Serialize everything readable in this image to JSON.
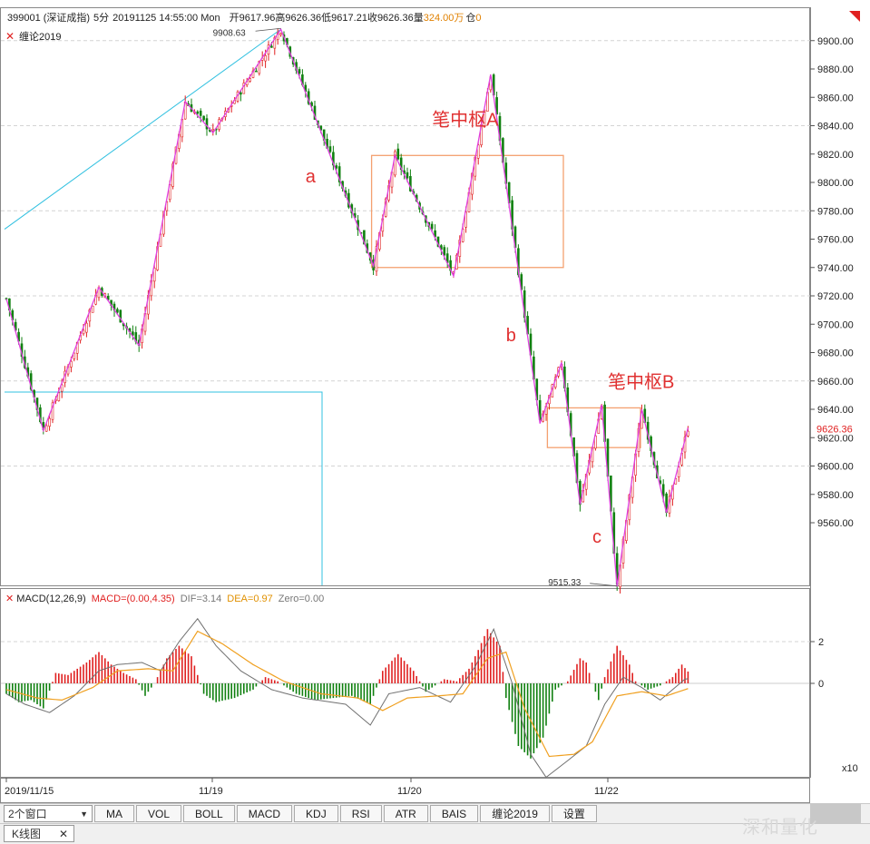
{
  "header": {
    "code": "399001",
    "name": "(深证成指)",
    "period": "5分",
    "datetime": "20191125 14:55:00 Mon",
    "open_label": "开",
    "open": "9617.96",
    "high_label": "高",
    "high": "9626.36",
    "low_label": "低",
    "low": "9617.21",
    "close_label": "收",
    "close": "9626.36",
    "vol_label": "量",
    "vol": "324.00万",
    "pos_label": "仓",
    "pos": "0"
  },
  "indicator_label": "缠论2019",
  "macd_header": {
    "name": "MACD(12,26,9)",
    "macd": "MACD=(0.00,4.35)",
    "dif": "DIF=3.14",
    "dea": "DEA=0.97",
    "zero": "Zero=0.00"
  },
  "x_axis_labels": [
    "2019/11/15",
    "11/19",
    "11/20",
    "11/22"
  ],
  "macd_multiplier": "x10",
  "toolbar": {
    "window_select": "2个窗口",
    "buttons": [
      "MA",
      "VOL",
      "BOLL",
      "MACD",
      "KDJ",
      "RSI",
      "ATR",
      "BAIS",
      "缠论2019",
      "设置"
    ]
  },
  "tab": {
    "label": "K线图",
    "close": "✕"
  },
  "watermark": "深和量化",
  "colors": {
    "up": "#e02020",
    "down": "#108010",
    "bi": "#e040e0",
    "zhongshu": "#f4a070",
    "trend": "#30c0e0",
    "dif": "#707070",
    "dea": "#f0a020",
    "annot": "#e03030"
  },
  "chart_data": {
    "type": "candlestick",
    "ylim": [
      9500,
      9930
    ],
    "y_ticks": [
      9560,
      9580,
      9600,
      9620,
      9640,
      9660,
      9680,
      9700,
      9720,
      9740,
      9760,
      9780,
      9800,
      9820,
      9840,
      9860,
      9880,
      9900
    ],
    "y_tick_labels": [
      "9560.00",
      "9580.00",
      "9600.00",
      "9620.00",
      "9640.00",
      "9660.00",
      "9680.00",
      "9700.00",
      "9720.00",
      "9740.00",
      "9760.00",
      "9780.00",
      "9800.00",
      "9820.00",
      "9840.00",
      "9860.00",
      "9880.00",
      "9900.00"
    ],
    "last_price": 9626.36,
    "last_price_label": "9626.36",
    "high_marker": {
      "value": 9908.63,
      "label": "9908.63"
    },
    "low_marker": {
      "value": 9515.33,
      "label": "9515.33"
    },
    "bi_points": [
      {
        "x": 0,
        "y": 9718
      },
      {
        "x": 12,
        "y": 9625
      },
      {
        "x": 30,
        "y": 9726
      },
      {
        "x": 43,
        "y": 9685
      },
      {
        "x": 58,
        "y": 9857
      },
      {
        "x": 67,
        "y": 9835
      },
      {
        "x": 89,
        "y": 9908
      },
      {
        "x": 119,
        "y": 9741
      },
      {
        "x": 126,
        "y": 9819
      },
      {
        "x": 145,
        "y": 9734
      },
      {
        "x": 157,
        "y": 9876
      },
      {
        "x": 173,
        "y": 9630
      },
      {
        "x": 180,
        "y": 9673
      },
      {
        "x": 186,
        "y": 9573
      },
      {
        "x": 193,
        "y": 9643
      },
      {
        "x": 198,
        "y": 9515
      },
      {
        "x": 206,
        "y": 9640
      },
      {
        "x": 214,
        "y": 9567
      },
      {
        "x": 221,
        "y": 9627
      }
    ],
    "zhongshu": [
      {
        "name": "笔中枢A",
        "x1": 119,
        "x2": 180,
        "low": 9740,
        "high": 9819
      },
      {
        "name": "笔中枢B",
        "x1": 176,
        "x2": 205,
        "low": 9613,
        "high": 9641
      }
    ],
    "trend_line": {
      "x1": 0,
      "y1": 9767,
      "x2": 89,
      "y2": 9908
    },
    "annotations": [
      {
        "text": "a",
        "x": 97,
        "y": 9800
      },
      {
        "text": "笔中枢A",
        "x": 138,
        "y": 9840
      },
      {
        "text": "b",
        "x": 162,
        "y": 9688
      },
      {
        "text": "笔中枢B",
        "x": 195,
        "y": 9655
      },
      {
        "text": "c",
        "x": 190,
        "y": 9546
      }
    ],
    "macd_ylim": [
      -7,
      5
    ],
    "macd_ticks": [
      2,
      0
    ],
    "macd_tick_labels": [
      "2",
      "0"
    ],
    "macd_hist_anchors": [
      [
        0,
        -0.5
      ],
      [
        4,
        -0.9
      ],
      [
        8,
        -0.8
      ],
      [
        12,
        -1.2
      ],
      [
        16,
        0.5
      ],
      [
        20,
        0.4
      ],
      [
        26,
        1.0
      ],
      [
        30,
        1.5
      ],
      [
        34,
        0.9
      ],
      [
        38,
        0.5
      ],
      [
        42,
        0.2
      ],
      [
        45,
        -0.6
      ],
      [
        48,
        0.0
      ],
      [
        52,
        1.2
      ],
      [
        56,
        1.8
      ],
      [
        60,
        1.3
      ],
      [
        64,
        -0.5
      ],
      [
        68,
        -0.9
      ],
      [
        74,
        -0.7
      ],
      [
        80,
        -0.3
      ],
      [
        84,
        0.3
      ],
      [
        88,
        0.1
      ],
      [
        94,
        -0.5
      ],
      [
        100,
        -0.8
      ],
      [
        106,
        -0.7
      ],
      [
        112,
        -0.6
      ],
      [
        118,
        -1.0
      ],
      [
        122,
        0.6
      ],
      [
        127,
        1.4
      ],
      [
        132,
        0.6
      ],
      [
        136,
        -0.4
      ],
      [
        142,
        0.2
      ],
      [
        146,
        0.1
      ],
      [
        150,
        0.7
      ],
      [
        153,
        1.6
      ],
      [
        156,
        2.6
      ],
      [
        160,
        1.8
      ],
      [
        162,
        -0.7
      ],
      [
        166,
        -3.0
      ],
      [
        170,
        -3.6
      ],
      [
        174,
        -2.6
      ],
      [
        178,
        -0.3
      ],
      [
        182,
        0.1
      ],
      [
        186,
        1.2
      ],
      [
        188,
        1.0
      ],
      [
        190,
        0.0
      ],
      [
        192,
        -0.8
      ],
      [
        194,
        0.3
      ],
      [
        198,
        1.8
      ],
      [
        202,
        0.9
      ],
      [
        204,
        0.1
      ],
      [
        208,
        -0.3
      ],
      [
        212,
        -0.1
      ],
      [
        216,
        0.3
      ],
      [
        219,
        0.9
      ],
      [
        222,
        0.4
      ],
      [
        226,
        0.0
      ],
      [
        228,
        0.8
      ]
    ],
    "macd_dif_anchors": [
      [
        0,
        -0.5
      ],
      [
        6,
        -1.0
      ],
      [
        14,
        -1.4
      ],
      [
        22,
        -0.6
      ],
      [
        30,
        0.6
      ],
      [
        36,
        0.9
      ],
      [
        44,
        1.0
      ],
      [
        50,
        0.6
      ],
      [
        56,
        2.0
      ],
      [
        62,
        3.1
      ],
      [
        68,
        1.8
      ],
      [
        76,
        0.6
      ],
      [
        86,
        -0.3
      ],
      [
        96,
        -0.7
      ],
      [
        110,
        -1.0
      ],
      [
        118,
        -2.0
      ],
      [
        124,
        -0.5
      ],
      [
        134,
        -0.2
      ],
      [
        144,
        -0.9
      ],
      [
        152,
        0.8
      ],
      [
        158,
        2.6
      ],
      [
        164,
        0.0
      ],
      [
        170,
        -3.4
      ],
      [
        175,
        -4.5
      ],
      [
        182,
        -3.7
      ],
      [
        188,
        -3.0
      ],
      [
        194,
        -1.0
      ],
      [
        200,
        0.3
      ],
      [
        206,
        -0.2
      ],
      [
        212,
        -0.8
      ],
      [
        220,
        0.2
      ],
      [
        228,
        0.4
      ]
    ],
    "macd_dea_anchors": [
      [
        0,
        -0.3
      ],
      [
        10,
        -0.7
      ],
      [
        18,
        -0.8
      ],
      [
        28,
        -0.2
      ],
      [
        36,
        0.6
      ],
      [
        46,
        0.7
      ],
      [
        54,
        0.6
      ],
      [
        62,
        2.5
      ],
      [
        70,
        1.9
      ],
      [
        80,
        0.9
      ],
      [
        90,
        0.1
      ],
      [
        102,
        -0.5
      ],
      [
        114,
        -0.7
      ],
      [
        122,
        -1.3
      ],
      [
        130,
        -0.7
      ],
      [
        140,
        -0.6
      ],
      [
        148,
        -0.5
      ],
      [
        156,
        1.2
      ],
      [
        162,
        1.5
      ],
      [
        168,
        -1.2
      ],
      [
        176,
        -3.5
      ],
      [
        184,
        -3.4
      ],
      [
        190,
        -2.8
      ],
      [
        198,
        -0.6
      ],
      [
        206,
        -0.4
      ],
      [
        214,
        -0.6
      ],
      [
        222,
        -0.2
      ],
      [
        228,
        0.1
      ]
    ]
  }
}
